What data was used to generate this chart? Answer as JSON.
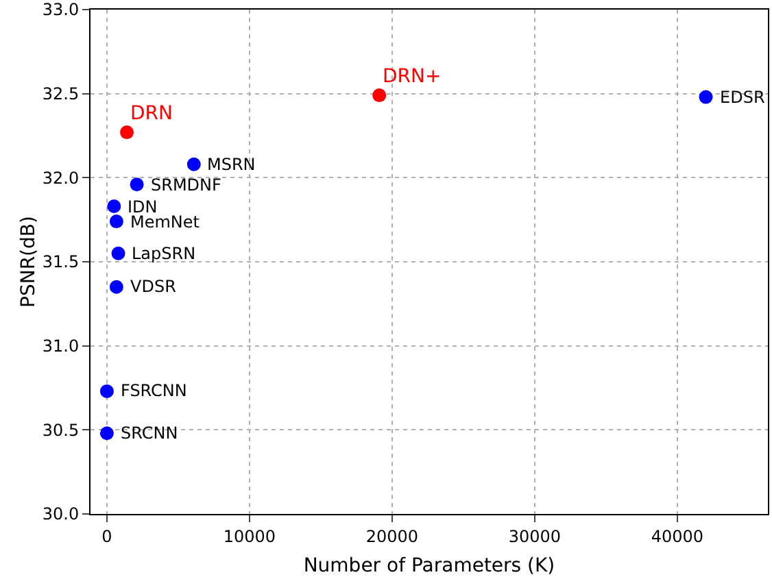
{
  "chart_data": {
    "type": "scatter",
    "xlabel": "Number of Parameters (K)",
    "ylabel": "PSNR(dB)",
    "x": [
      1400,
      19100,
      42000,
      6100,
      2100,
      500,
      670,
      800,
      670,
      0,
      0
    ],
    "values": [
      32.27,
      32.49,
      32.48,
      32.08,
      31.96,
      31.83,
      31.74,
      31.55,
      31.35,
      30.73,
      30.48
    ],
    "colors": [
      "#ff0000",
      "#ff0000",
      "#0000ff",
      "#0000ff",
      "#0000ff",
      "#0000ff",
      "#0000ff",
      "#0000ff",
      "#0000ff",
      "#0000ff",
      "#0000ff"
    ],
    "marker": "circle",
    "xlim": [
      -1150,
      46350
    ],
    "xticks": [
      0,
      10000,
      20000,
      30000,
      40000
    ],
    "ylim": [
      30,
      33
    ],
    "yticks": [
      {
        "value": 30,
        "label": "30.0"
      },
      {
        "value": 30.5,
        "label": "30.5"
      },
      {
        "value": 31,
        "label": "31.0"
      },
      {
        "value": 31.5,
        "label": "31.5"
      },
      {
        "value": 32,
        "label": "32.0"
      },
      {
        "value": 32.5,
        "label": "32.5"
      },
      {
        "value": 33,
        "label": "33.0"
      }
    ],
    "grid": true,
    "annotations": [
      {
        "text": "DRN",
        "x": 1400,
        "y": 32.27
      },
      {
        "text": "DRN+",
        "x": 19100,
        "y": 32.49
      },
      {
        "text": "EDSR",
        "x": 42000,
        "y": 32.48
      },
      {
        "text": "MSRN",
        "x": 6100,
        "y": 32.08
      },
      {
        "text": "SRMDNF",
        "x": 2100,
        "y": 31.96
      },
      {
        "text": "IDN",
        "x": 500,
        "y": 31.83
      },
      {
        "text": "MemNet",
        "x": 670,
        "y": 31.74
      },
      {
        "text": "LapSRN",
        "x": 800,
        "y": 31.55
      },
      {
        "text": "VDSR",
        "x": 670,
        "y": 31.35
      },
      {
        "text": "FSRCNN",
        "x": 0,
        "y": 30.73
      },
      {
        "text": "SRCNN",
        "x": 0,
        "y": 30.48
      }
    ]
  }
}
